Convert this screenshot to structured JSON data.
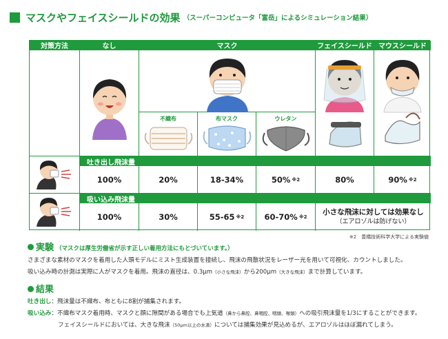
{
  "title": {
    "main": "マスクやフェイスシールドの効果",
    "sub": "（スーパーコンピュータ「富岳」によるシミュレーション結果）"
  },
  "table": {
    "headers": {
      "method": "対策方法",
      "none": "なし",
      "mask": "マスク",
      "face_shield": "フェイスシールド",
      "mouth_shield": "マウスシールド"
    },
    "mask_types": {
      "nonwoven": "不織布",
      "cloth": "布マスク",
      "urethane": "ウレタン"
    },
    "exhale": {
      "label": "吐き出し飛沫量",
      "none": "100%",
      "nonwoven": "20%",
      "cloth": "18-34%",
      "urethane": "50%",
      "urethane_note": "※2",
      "face_shield": "80%",
      "mouth_shield": "90%",
      "mouth_shield_note": "※2"
    },
    "inhale": {
      "label": "吸い込み飛沫量",
      "none": "100%",
      "nonwoven": "30%",
      "cloth": "55-65",
      "cloth_note": "※2",
      "urethane": "60-70%",
      "urethane_note": "※2",
      "shield_line1": "小さな飛沫に対しては効果なし",
      "shield_line2": "（エアロゾルは防げない）"
    }
  },
  "footnote": "※2　豊橋技術科学大学による実験値",
  "experiment": {
    "title": "実験",
    "paren": "（マスクは厚生労働省が示す正しい着用方法にもとづいています。）",
    "line1": "さまざまな素材のマスクを着用した人頭モデルにミスト生成装置を接続し、飛沫の飛散状況をレーザー光を用いて可視化、カウントしました。",
    "line2a": "吸い込み時の計測は実際に人がマスクを着用。飛沫の直径は、0.3μm",
    "line2b": "（小さな飛沫）",
    "line2c": "から200μm",
    "line2d": "（大きな飛沫）",
    "line2e": "まで計算しています。"
  },
  "result": {
    "title": "結果",
    "exhale_label": "吐き出し",
    "exhale_text": "：飛沫量は不織布、布ともに8割が捕集されます。",
    "inhale_label": "吸い込み",
    "inhale_text_a": "：不織布マスク着用時、マスクと顔に隙間がある場合でも上気道",
    "inhale_text_b": "（鼻から鼻腔、鼻咽腔、咽頭、喉頭）",
    "inhale_text_c": "への吸引飛沫量を1/3にすることができます。",
    "shield_text_a": "フェイスシールドにおいては、大きな飛沫",
    "shield_text_b": "（50μm以上の水滴）",
    "shield_text_c": "については捕集効果が見込めるが、エアロゾルはほぼ漏れてしまう。"
  }
}
